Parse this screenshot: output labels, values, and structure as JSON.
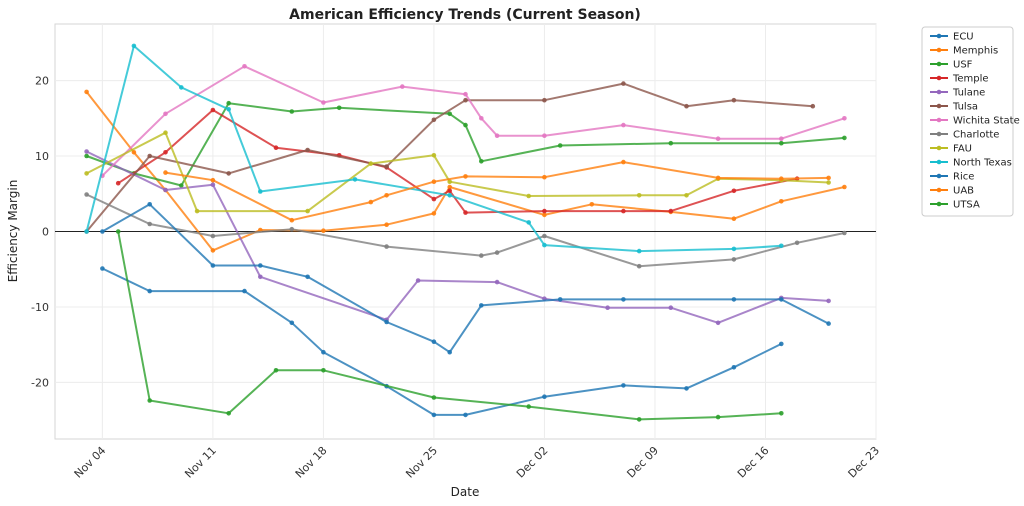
{
  "chart_data": {
    "type": "line",
    "title": "American Efficiency Trends (Current Season)",
    "xlabel": "Date",
    "ylabel": "Efficiency Margin",
    "xlim": [
      "2024-11-01",
      "2024-12-23"
    ],
    "ylim": [
      -27.5,
      27.5
    ],
    "x_ticks": [
      {
        "date": "2024-11-04",
        "label": "Nov 04"
      },
      {
        "date": "2024-11-11",
        "label": "Nov 11"
      },
      {
        "date": "2024-11-18",
        "label": "Nov 18"
      },
      {
        "date": "2024-11-25",
        "label": "Nov 25"
      },
      {
        "date": "2024-12-02",
        "label": "Dec 02"
      },
      {
        "date": "2024-12-09",
        "label": "Dec 09"
      },
      {
        "date": "2024-12-16",
        "label": "Dec 16"
      },
      {
        "date": "2024-12-23",
        "label": "Dec 23"
      }
    ],
    "y_ticks": [
      -20,
      -10,
      0,
      10,
      20
    ],
    "grid": true,
    "zero_line": true,
    "legend_position": "outside-right",
    "series": [
      {
        "name": "ECU",
        "color": "#1f77b4",
        "points": [
          [
            "2024-11-04",
            -4.9
          ],
          [
            "2024-11-07",
            -7.9
          ],
          [
            "2024-11-13",
            -7.9
          ],
          [
            "2024-11-16",
            -12.1
          ],
          [
            "2024-11-18",
            -16.0
          ],
          [
            "2024-11-22",
            -20.5
          ],
          [
            "2024-11-25",
            -24.3
          ],
          [
            "2024-11-27",
            -24.3
          ],
          [
            "2024-12-02",
            -21.9
          ],
          [
            "2024-12-07",
            -20.4
          ],
          [
            "2024-12-11",
            -20.8
          ],
          [
            "2024-12-14",
            -18.0
          ],
          [
            "2024-12-17",
            -14.9
          ]
        ]
      },
      {
        "name": "Memphis",
        "color": "#ff7f0e",
        "points": [
          [
            "2024-11-03",
            18.5
          ],
          [
            "2024-11-06",
            10.5
          ],
          [
            "2024-11-08",
            5.5
          ],
          [
            "2024-11-11",
            -2.5
          ],
          [
            "2024-11-14",
            0.2
          ],
          [
            "2024-11-18",
            0.1
          ],
          [
            "2024-11-22",
            0.9
          ],
          [
            "2024-11-25",
            2.4
          ],
          [
            "2024-11-26",
            5.9
          ],
          [
            "2024-12-02",
            2.2
          ],
          [
            "2024-12-05",
            3.6
          ],
          [
            "2024-12-10",
            2.6
          ],
          [
            "2024-12-14",
            1.7
          ],
          [
            "2024-12-17",
            4.0
          ],
          [
            "2024-12-21",
            5.9
          ]
        ]
      },
      {
        "name": "USF",
        "color": "#2ca02c",
        "points": [
          [
            "2024-11-03",
            10.0
          ],
          [
            "2024-11-06",
            7.7
          ],
          [
            "2024-11-09",
            6.1
          ],
          [
            "2024-11-12",
            17.0
          ],
          [
            "2024-11-16",
            15.9
          ],
          [
            "2024-11-19",
            16.4
          ],
          [
            "2024-11-26",
            15.6
          ],
          [
            "2024-11-27",
            14.1
          ],
          [
            "2024-11-28",
            9.3
          ],
          [
            "2024-12-03",
            11.4
          ],
          [
            "2024-12-10",
            11.7
          ],
          [
            "2024-12-17",
            11.7
          ],
          [
            "2024-12-21",
            12.4
          ]
        ]
      },
      {
        "name": "Temple",
        "color": "#d62728",
        "points": [
          [
            "2024-11-05",
            6.4
          ],
          [
            "2024-11-08",
            10.5
          ],
          [
            "2024-11-11",
            16.1
          ],
          [
            "2024-11-15",
            11.1
          ],
          [
            "2024-11-19",
            10.1
          ],
          [
            "2024-11-22",
            8.5
          ],
          [
            "2024-11-25",
            4.3
          ],
          [
            "2024-11-26",
            5.4
          ],
          [
            "2024-11-27",
            2.5
          ],
          [
            "2024-12-02",
            2.7
          ],
          [
            "2024-12-07",
            2.7
          ],
          [
            "2024-12-10",
            2.7
          ],
          [
            "2024-12-14",
            5.4
          ],
          [
            "2024-12-18",
            7.0
          ]
        ]
      },
      {
        "name": "Tulane",
        "color": "#9467bd",
        "points": [
          [
            "2024-11-03",
            10.6
          ],
          [
            "2024-11-08",
            5.5
          ],
          [
            "2024-11-11",
            6.2
          ],
          [
            "2024-11-14",
            -6.0
          ],
          [
            "2024-11-22",
            -11.7
          ],
          [
            "2024-11-24",
            -6.5
          ],
          [
            "2024-11-29",
            -6.7
          ],
          [
            "2024-12-02",
            -8.9
          ],
          [
            "2024-12-06",
            -10.1
          ],
          [
            "2024-12-10",
            -10.1
          ],
          [
            "2024-12-13",
            -12.1
          ],
          [
            "2024-12-17",
            -8.8
          ],
          [
            "2024-12-20",
            -9.2
          ]
        ]
      },
      {
        "name": "Tulsa",
        "color": "#8c564b",
        "points": [
          [
            "2024-11-03",
            0.0
          ],
          [
            "2024-11-07",
            10.0
          ],
          [
            "2024-11-12",
            7.7
          ],
          [
            "2024-11-17",
            10.8
          ],
          [
            "2024-11-22",
            8.6
          ],
          [
            "2024-11-25",
            14.8
          ],
          [
            "2024-11-27",
            17.4
          ],
          [
            "2024-12-02",
            17.4
          ],
          [
            "2024-12-07",
            19.6
          ],
          [
            "2024-12-11",
            16.6
          ],
          [
            "2024-12-14",
            17.4
          ],
          [
            "2024-12-19",
            16.6
          ]
        ]
      },
      {
        "name": "Wichita State",
        "color": "#e377c2",
        "points": [
          [
            "2024-11-04",
            7.4
          ],
          [
            "2024-11-08",
            15.6
          ],
          [
            "2024-11-13",
            21.9
          ],
          [
            "2024-11-18",
            17.1
          ],
          [
            "2024-11-23",
            19.2
          ],
          [
            "2024-11-27",
            18.2
          ],
          [
            "2024-11-28",
            15.0
          ],
          [
            "2024-11-29",
            12.7
          ],
          [
            "2024-12-02",
            12.7
          ],
          [
            "2024-12-07",
            14.1
          ],
          [
            "2024-12-13",
            12.3
          ],
          [
            "2024-12-17",
            12.3
          ],
          [
            "2024-12-21",
            15.0
          ]
        ]
      },
      {
        "name": "Charlotte",
        "color": "#7f7f7f",
        "points": [
          [
            "2024-11-03",
            4.9
          ],
          [
            "2024-11-07",
            1.0
          ],
          [
            "2024-11-11",
            -0.6
          ],
          [
            "2024-11-16",
            0.3
          ],
          [
            "2024-11-22",
            -2.0
          ],
          [
            "2024-11-28",
            -3.2
          ],
          [
            "2024-11-29",
            -2.8
          ],
          [
            "2024-12-02",
            -0.6
          ],
          [
            "2024-12-08",
            -4.6
          ],
          [
            "2024-12-14",
            -3.7
          ],
          [
            "2024-12-18",
            -1.5
          ],
          [
            "2024-12-21",
            -0.2
          ]
        ]
      },
      {
        "name": "FAU",
        "color": "#bcbd22",
        "points": [
          [
            "2024-11-03",
            7.7
          ],
          [
            "2024-11-08",
            13.1
          ],
          [
            "2024-11-10",
            2.7
          ],
          [
            "2024-11-17",
            2.7
          ],
          [
            "2024-11-21",
            9.0
          ],
          [
            "2024-11-25",
            10.1
          ],
          [
            "2024-11-26",
            6.6
          ],
          [
            "2024-12-01",
            4.7
          ],
          [
            "2024-12-08",
            4.8
          ],
          [
            "2024-12-11",
            4.8
          ],
          [
            "2024-12-13",
            7.0
          ],
          [
            "2024-12-17",
            6.8
          ],
          [
            "2024-12-20",
            6.5
          ]
        ]
      },
      {
        "name": "North Texas",
        "color": "#17becf",
        "points": [
          [
            "2024-11-03",
            0.0
          ],
          [
            "2024-11-06",
            24.6
          ],
          [
            "2024-11-09",
            19.1
          ],
          [
            "2024-11-12",
            16.2
          ],
          [
            "2024-11-14",
            5.3
          ],
          [
            "2024-11-20",
            6.9
          ],
          [
            "2024-11-26",
            4.8
          ],
          [
            "2024-12-01",
            1.2
          ],
          [
            "2024-12-02",
            -1.8
          ],
          [
            "2024-12-08",
            -2.6
          ],
          [
            "2024-12-14",
            -2.3
          ],
          [
            "2024-12-17",
            -1.9
          ]
        ]
      },
      {
        "name": "Rice",
        "color": "#1f77b4",
        "points": [
          [
            "2024-11-04",
            0.0
          ],
          [
            "2024-11-07",
            3.6
          ],
          [
            "2024-11-11",
            -4.5
          ],
          [
            "2024-11-14",
            -4.5
          ],
          [
            "2024-11-17",
            -6.0
          ],
          [
            "2024-11-22",
            -12.0
          ],
          [
            "2024-11-25",
            -14.6
          ],
          [
            "2024-11-26",
            -16.0
          ],
          [
            "2024-11-28",
            -9.8
          ],
          [
            "2024-12-03",
            -9.0
          ],
          [
            "2024-12-07",
            -9.0
          ],
          [
            "2024-12-14",
            -9.0
          ],
          [
            "2024-12-17",
            -9.0
          ],
          [
            "2024-12-20",
            -12.2
          ]
        ]
      },
      {
        "name": "UAB",
        "color": "#ff7f0e",
        "points": [
          [
            "2024-11-08",
            7.8
          ],
          [
            "2024-11-11",
            6.8
          ],
          [
            "2024-11-16",
            1.5
          ],
          [
            "2024-11-21",
            3.9
          ],
          [
            "2024-11-22",
            4.8
          ],
          [
            "2024-11-25",
            6.6
          ],
          [
            "2024-11-27",
            7.3
          ],
          [
            "2024-12-02",
            7.2
          ],
          [
            "2024-12-07",
            9.2
          ],
          [
            "2024-12-13",
            7.1
          ],
          [
            "2024-12-17",
            7.0
          ],
          [
            "2024-12-20",
            7.1
          ]
        ]
      },
      {
        "name": "UTSA",
        "color": "#2ca02c",
        "points": [
          [
            "2024-11-05",
            0.0
          ],
          [
            "2024-11-07",
            -22.4
          ],
          [
            "2024-11-12",
            -24.1
          ],
          [
            "2024-11-15",
            -18.4
          ],
          [
            "2024-11-18",
            -18.4
          ],
          [
            "2024-11-25",
            -22.0
          ],
          [
            "2024-12-01",
            -23.2
          ],
          [
            "2024-12-08",
            -24.9
          ],
          [
            "2024-12-13",
            -24.6
          ],
          [
            "2024-12-17",
            -24.1
          ]
        ]
      }
    ]
  }
}
